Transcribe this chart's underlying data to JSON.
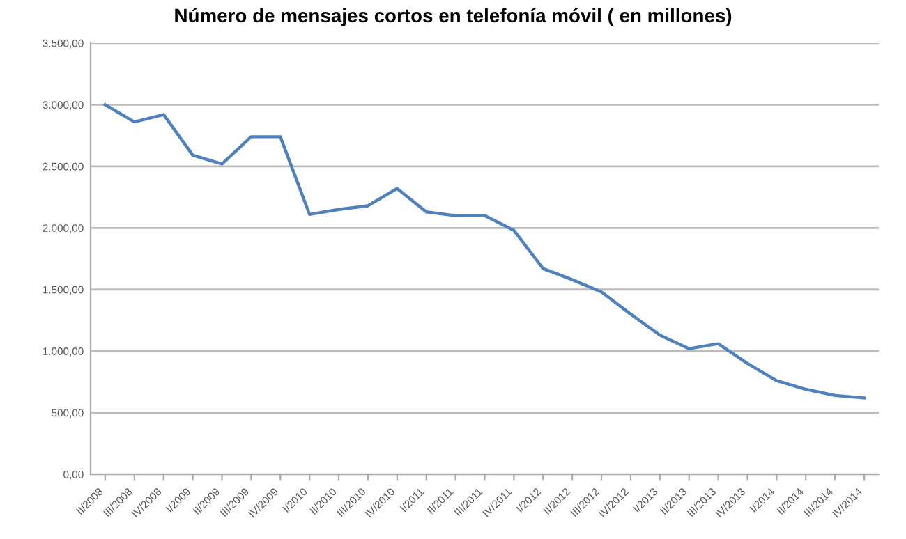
{
  "chart_data": {
    "type": "line",
    "title": "Número de mensajes cortos en telefonía móvil ( en millones)",
    "categories": [
      "II/2008",
      "III/2008",
      "IV/2008",
      "I/2009",
      "II/2009",
      "III/2009",
      "IV/2009",
      "I/2010",
      "II/2010",
      "III/2010",
      "IV/2010",
      "I/2011",
      "II/2011",
      "III/2011",
      "IV/2011",
      "I/2012",
      "II/2012",
      "III/2012",
      "IV/2012",
      "I/2013",
      "II/2013",
      "III/2013",
      "IV/2013",
      "I/2014",
      "II/2014",
      "III/2014",
      "IV/2014"
    ],
    "series": [
      {
        "color": "#4f81bd",
        "values": [
          3000,
          2860,
          2920,
          2590,
          2520,
          2740,
          2740,
          2110,
          2150,
          2180,
          2320,
          2130,
          2100,
          2100,
          1980,
          1670,
          1580,
          1480,
          1300,
          1130,
          1020,
          1060,
          900,
          760,
          690,
          640,
          620
        ]
      }
    ],
    "ylim": [
      0,
      3500
    ],
    "yticks": [
      {
        "value": 0,
        "label": "0,00"
      },
      {
        "value": 500,
        "label": "500,00"
      },
      {
        "value": 1000,
        "label": "1.000,00"
      },
      {
        "value": 1500,
        "label": "1.500,00"
      },
      {
        "value": 2000,
        "label": "2.000,00"
      },
      {
        "value": 2500,
        "label": "2.500,00"
      },
      {
        "value": 3000,
        "label": "3.000,00"
      },
      {
        "value": 3500,
        "label": "3.500,00"
      }
    ],
    "grid": "y",
    "marker": "none",
    "line_style": "solid"
  }
}
